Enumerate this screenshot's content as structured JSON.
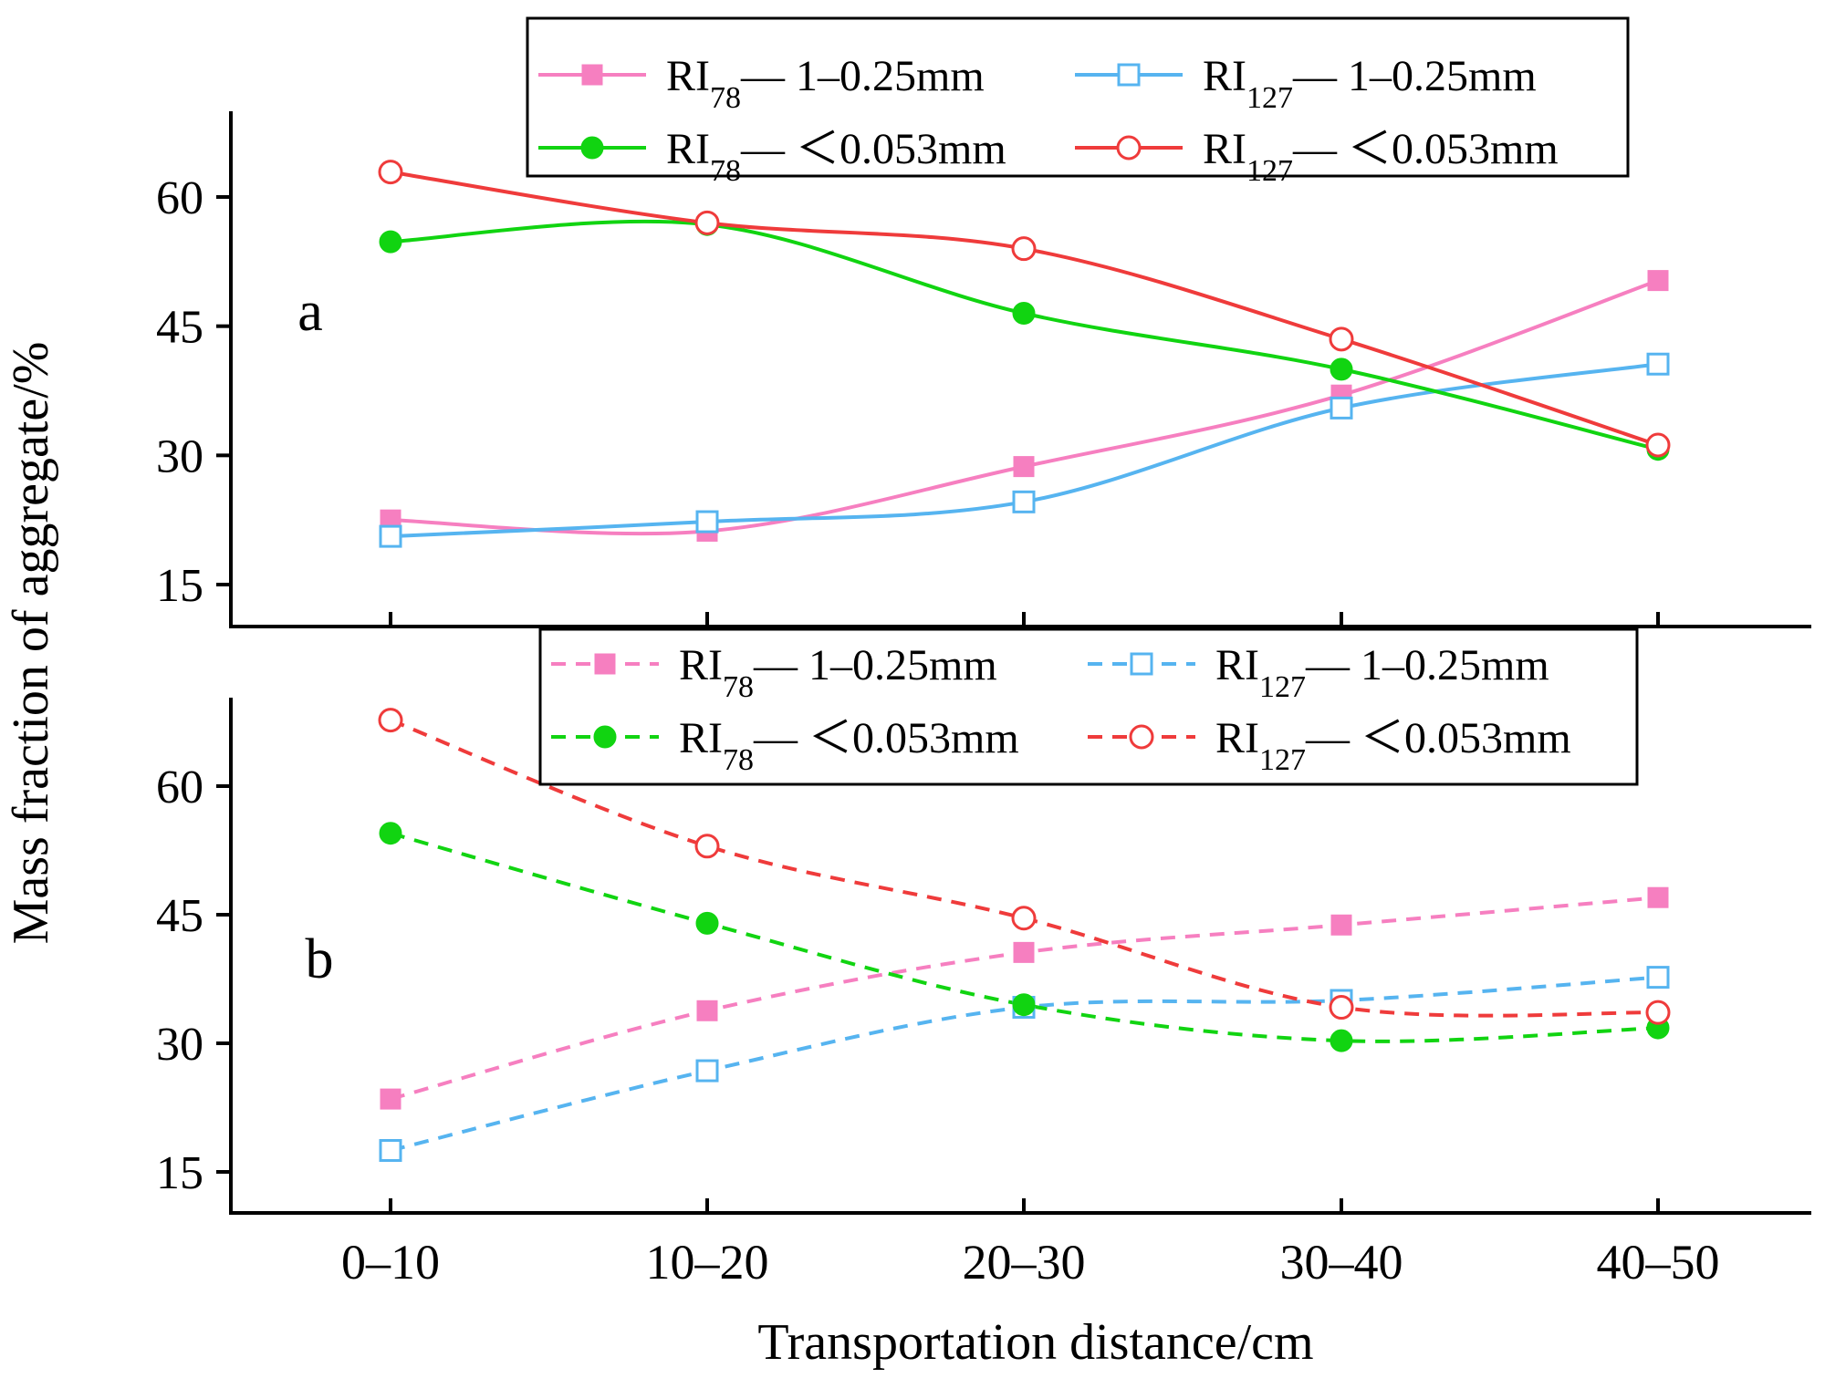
{
  "chart_data": {
    "type": "line",
    "xlabel": "Transportation distance/cm",
    "ylabel": "Mass fraction of aggregate/%",
    "categories": [
      "0–10",
      "10–20",
      "20–30",
      "30–40",
      "40–50"
    ],
    "yticks": [
      "15",
      "30",
      "45",
      "60"
    ],
    "ylim": [
      10,
      70
    ],
    "panels": [
      {
        "id": "a",
        "label": "a",
        "line_style": "solid",
        "series": [
          {
            "key": "ri78_coarse",
            "base": "RI",
            "sub": "78",
            "suffix": "— 1–0.25mm",
            "color": "#f67fc0",
            "marker": "square",
            "filled": true,
            "values": [
              22.5,
              21.2,
              28.7,
              37.0,
              50.3
            ]
          },
          {
            "key": "ri127_coarse",
            "base": "RI",
            "sub": "127",
            "suffix": "— 1–0.25mm",
            "color": "#56b4f0",
            "marker": "square",
            "filled": false,
            "values": [
              20.6,
              22.3,
              24.6,
              35.5,
              40.6
            ]
          },
          {
            "key": "ri78_fine",
            "base": "RI",
            "sub": "78",
            "suffix": "— ＜0.053mm",
            "color": "#11d411",
            "marker": "circle",
            "filled": true,
            "values": [
              54.8,
              56.8,
              46.5,
              40.0,
              30.7
            ]
          },
          {
            "key": "ri127_fine",
            "base": "RI",
            "sub": "127",
            "suffix": "— ＜0.053mm",
            "color": "#ef3b3b",
            "marker": "circle",
            "filled": false,
            "values": [
              62.9,
              57.0,
              54.0,
              43.5,
              31.2
            ]
          }
        ]
      },
      {
        "id": "b",
        "label": "b",
        "line_style": "dashed",
        "series": [
          {
            "key": "ri78_coarse",
            "base": "RI",
            "sub": "78",
            "suffix": "— 1–0.25mm",
            "color": "#f67fc0",
            "marker": "square",
            "filled": true,
            "values": [
              23.5,
              33.8,
              40.6,
              43.8,
              47.0
            ]
          },
          {
            "key": "ri127_coarse",
            "base": "RI",
            "sub": "127",
            "suffix": "— 1–0.25mm",
            "color": "#56b4f0",
            "marker": "square",
            "filled": false,
            "values": [
              17.5,
              26.8,
              34.2,
              35.0,
              37.7
            ]
          },
          {
            "key": "ri78_fine",
            "base": "RI",
            "sub": "78",
            "suffix": "— ＜0.053mm",
            "color": "#11d411",
            "marker": "circle",
            "filled": true,
            "values": [
              54.5,
              44.0,
              34.5,
              30.3,
              31.8
            ]
          },
          {
            "key": "ri127_fine",
            "base": "RI",
            "sub": "127",
            "suffix": "— ＜0.053mm",
            "color": "#ef3b3b",
            "marker": "circle",
            "filled": false,
            "values": [
              67.7,
              53.0,
              44.6,
              34.2,
              33.6
            ]
          }
        ]
      }
    ]
  }
}
